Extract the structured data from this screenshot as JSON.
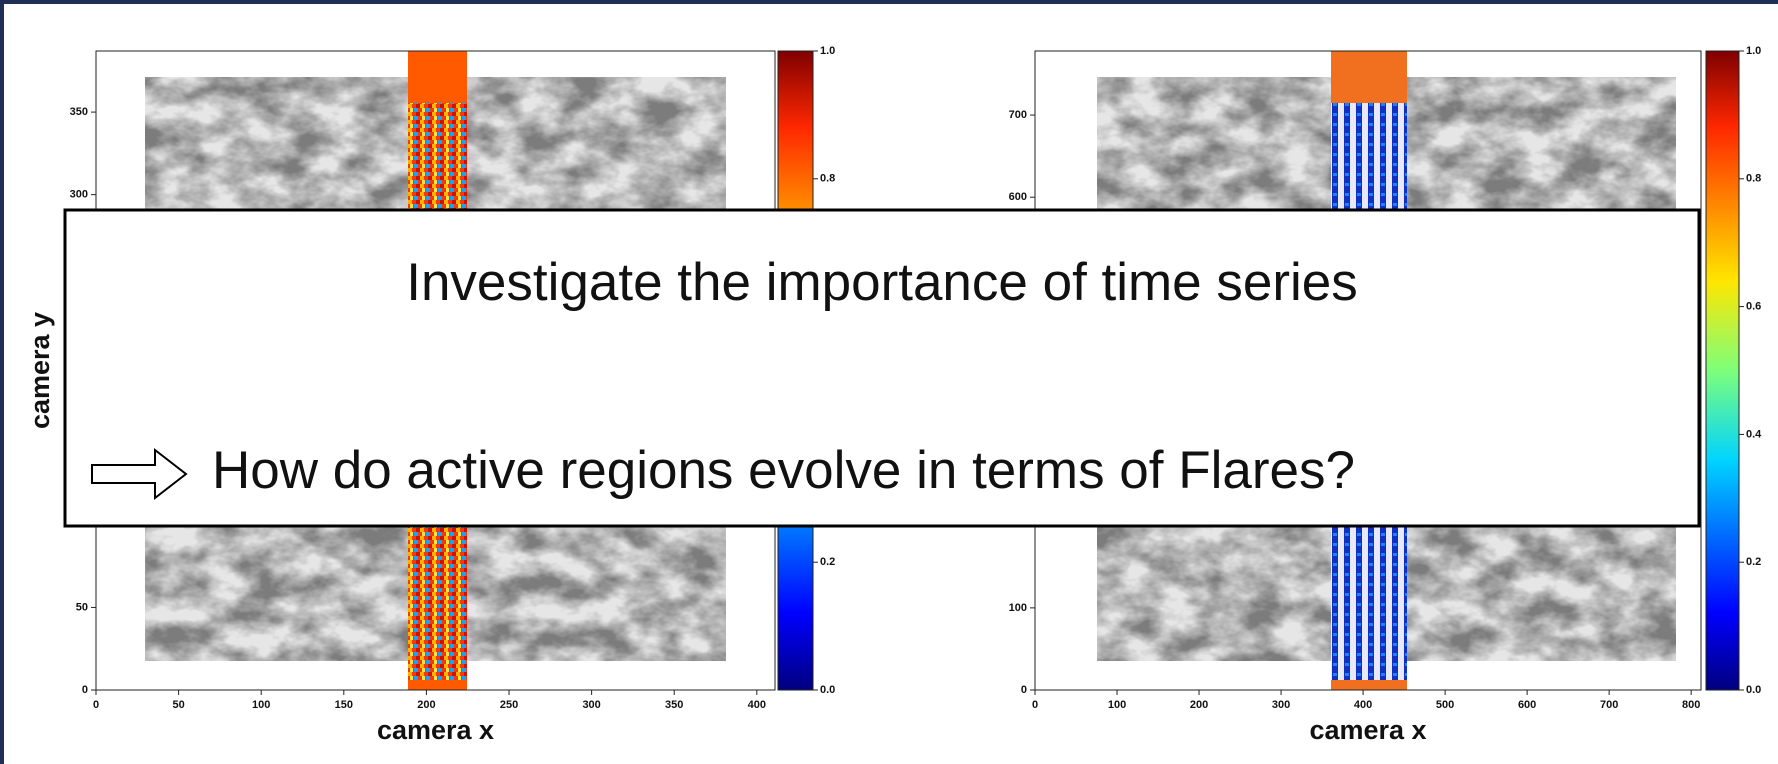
{
  "panels": [
    {
      "xlabel": "camera x",
      "ylabel": "camera y",
      "xlim": [
        0,
        411
      ],
      "ylim": [
        0,
        387
      ],
      "xticks": [
        0,
        50,
        100,
        150,
        200,
        250,
        300,
        350,
        400
      ],
      "yticks": [
        0,
        50,
        300,
        350
      ],
      "colorbar": {
        "lim": [
          0,
          1
        ],
        "ticks": [
          {
            "value": 0,
            "label": "0.0"
          },
          {
            "value": 0.2,
            "label": "0.2"
          },
          {
            "value": 0.8,
            "label": "0.8"
          },
          {
            "value": 1,
            "label": "1.0"
          }
        ]
      }
    },
    {
      "xlabel": "camera x",
      "xlim": [
        0,
        812
      ],
      "ylim": [
        0,
        778
      ],
      "xticks": [
        0,
        100,
        200,
        300,
        400,
        500,
        600,
        700,
        800
      ],
      "yticks": [
        0,
        100,
        600,
        700
      ],
      "colorbar": {
        "lim": [
          0,
          1
        ],
        "ticks": [
          {
            "value": 0,
            "label": "0.0"
          },
          {
            "value": 0.2,
            "label": "0.2"
          },
          {
            "value": 0.4,
            "label": "0.4"
          },
          {
            "value": 0.6,
            "label": "0.6"
          },
          {
            "value": 0.8,
            "label": "0.8"
          },
          {
            "value": 1,
            "label": "1.0"
          }
        ]
      }
    }
  ],
  "overlay": {
    "title": "Investigate the importance of time series",
    "point": "How do active regions evolve in terms of Flares?"
  }
}
